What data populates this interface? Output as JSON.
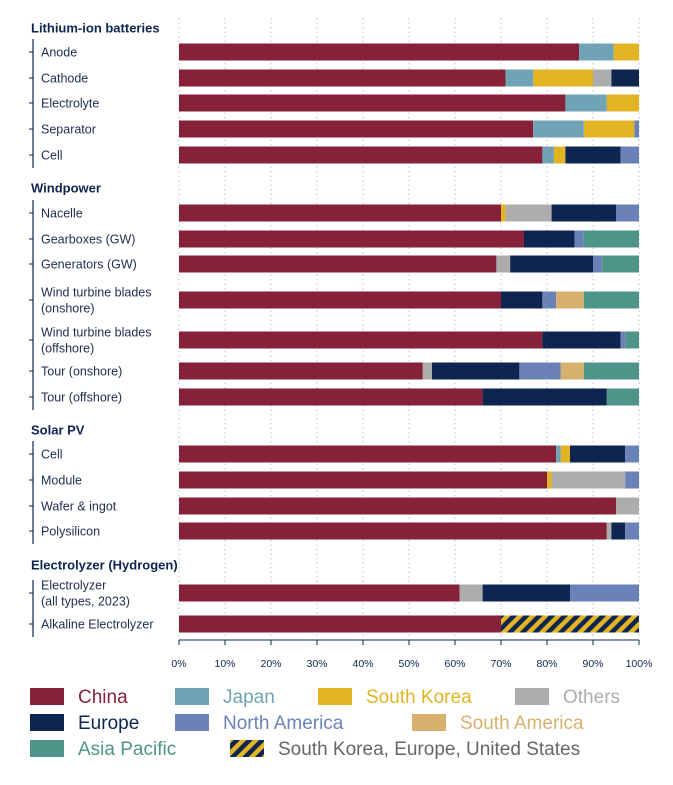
{
  "chart_data": {
    "type": "bar",
    "orientation": "horizontal",
    "stacked": true,
    "x_ticks": [
      "0%",
      "10%",
      "20%",
      "30%",
      "40%",
      "50%",
      "60%",
      "70%",
      "80%",
      "90%",
      "100%"
    ],
    "xlim": [
      0,
      100
    ],
    "grid": "vertical dotted",
    "legend_position": "bottom",
    "legend": [
      {
        "key": "china",
        "label": "China",
        "color": "#86213a",
        "text_color": "#86213a"
      },
      {
        "key": "japan",
        "label": "Japan",
        "color": "#6fa3b5",
        "text_color": "#6fa3b5"
      },
      {
        "key": "south_korea",
        "label": "South Korea",
        "color": "#e2b423",
        "text_color": "#e2b423"
      },
      {
        "key": "others",
        "label": "Others",
        "color": "#adadad",
        "text_color": "#adadad"
      },
      {
        "key": "europe",
        "label": "Europe",
        "color": "#0d2550",
        "text_color": "#0d2550"
      },
      {
        "key": "north_america",
        "label": "North America",
        "color": "#6a82b8",
        "text_color": "#6a82b8"
      },
      {
        "key": "south_america",
        "label": "South America",
        "color": "#d7b06d",
        "text_color": "#d7b06d"
      },
      {
        "key": "asia_pacific",
        "label": "Asia Pacific",
        "color": "#4f9488",
        "text_color": "#4f9488"
      },
      {
        "key": "skeu_us",
        "label": "South Korea, Europe, United States",
        "color": "hatched",
        "text_color": "#666666"
      }
    ],
    "groups": [
      {
        "title": "Lithium-ion batteries",
        "rows": [
          {
            "label": [
              "Anode"
            ],
            "segments": [
              {
                "s": "china",
                "v": 87
              },
              {
                "s": "japan",
                "v": 7.5
              },
              {
                "s": "south_korea",
                "v": 5.5
              }
            ]
          },
          {
            "label": [
              "Cathode"
            ],
            "segments": [
              {
                "s": "china",
                "v": 71
              },
              {
                "s": "japan",
                "v": 6
              },
              {
                "s": "south_korea",
                "v": 13
              },
              {
                "s": "others",
                "v": 4
              },
              {
                "s": "europe",
                "v": 6
              }
            ]
          },
          {
            "label": [
              "Electrolyte"
            ],
            "segments": [
              {
                "s": "china",
                "v": 84
              },
              {
                "s": "japan",
                "v": 9
              },
              {
                "s": "south_korea",
                "v": 7
              }
            ]
          },
          {
            "label": [
              "Separator"
            ],
            "segments": [
              {
                "s": "china",
                "v": 77
              },
              {
                "s": "japan",
                "v": 11
              },
              {
                "s": "south_korea",
                "v": 11
              },
              {
                "s": "north_america",
                "v": 1
              }
            ]
          },
          {
            "label": [
              "Cell"
            ],
            "segments": [
              {
                "s": "china",
                "v": 79
              },
              {
                "s": "japan",
                "v": 2.5
              },
              {
                "s": "south_korea",
                "v": 2.5
              },
              {
                "s": "europe",
                "v": 12
              },
              {
                "s": "north_america",
                "v": 4
              }
            ]
          }
        ]
      },
      {
        "title": "Windpower",
        "rows": [
          {
            "label": [
              "Nacelle"
            ],
            "segments": [
              {
                "s": "china",
                "v": 70
              },
              {
                "s": "south_korea",
                "v": 1
              },
              {
                "s": "others",
                "v": 10
              },
              {
                "s": "europe",
                "v": 14
              },
              {
                "s": "north_america",
                "v": 5
              }
            ]
          },
          {
            "label": [
              "Gearboxes (GW)"
            ],
            "segments": [
              {
                "s": "china",
                "v": 75
              },
              {
                "s": "europe",
                "v": 11
              },
              {
                "s": "north_america",
                "v": 2
              },
              {
                "s": "asia_pacific",
                "v": 12
              }
            ]
          },
          {
            "label": [
              "Generators (GW)"
            ],
            "segments": [
              {
                "s": "china",
                "v": 69
              },
              {
                "s": "others",
                "v": 3
              },
              {
                "s": "europe",
                "v": 18
              },
              {
                "s": "north_america",
                "v": 2
              },
              {
                "s": "asia_pacific",
                "v": 8
              }
            ]
          },
          {
            "label": [
              "Wind turbine blades",
              "(onshore)"
            ],
            "segments": [
              {
                "s": "china",
                "v": 70
              },
              {
                "s": "europe",
                "v": 9
              },
              {
                "s": "north_america",
                "v": 3
              },
              {
                "s": "south_america",
                "v": 6
              },
              {
                "s": "asia_pacific",
                "v": 12
              }
            ]
          },
          {
            "label": [
              "Wind turbine blades",
              "(offshore)"
            ],
            "segments": [
              {
                "s": "china",
                "v": 79
              },
              {
                "s": "europe",
                "v": 17
              },
              {
                "s": "north_america",
                "v": 1
              },
              {
                "s": "asia_pacific",
                "v": 3
              }
            ]
          },
          {
            "label": [
              "Tour (onshore)"
            ],
            "segments": [
              {
                "s": "china",
                "v": 53
              },
              {
                "s": "others",
                "v": 2
              },
              {
                "s": "europe",
                "v": 19
              },
              {
                "s": "north_america",
                "v": 9
              },
              {
                "s": "south_america",
                "v": 5
              },
              {
                "s": "asia_pacific",
                "v": 12
              }
            ]
          },
          {
            "label": [
              "Tour (offshore)"
            ],
            "segments": [
              {
                "s": "china",
                "v": 66
              },
              {
                "s": "europe",
                "v": 27
              },
              {
                "s": "asia_pacific",
                "v": 7
              }
            ]
          }
        ]
      },
      {
        "title": "Solar PV",
        "rows": [
          {
            "label": [
              "Cell"
            ],
            "segments": [
              {
                "s": "china",
                "v": 82
              },
              {
                "s": "japan",
                "v": 1
              },
              {
                "s": "south_korea",
                "v": 2
              },
              {
                "s": "europe",
                "v": 12
              },
              {
                "s": "north_america",
                "v": 3
              }
            ]
          },
          {
            "label": [
              "Module"
            ],
            "segments": [
              {
                "s": "china",
                "v": 80
              },
              {
                "s": "south_korea",
                "v": 1
              },
              {
                "s": "others",
                "v": 16
              },
              {
                "s": "north_america",
                "v": 3
              }
            ]
          },
          {
            "label": [
              "Wafer & ingot"
            ],
            "segments": [
              {
                "s": "china",
                "v": 95
              },
              {
                "s": "others",
                "v": 5
              }
            ]
          },
          {
            "label": [
              "Polysilicon"
            ],
            "segments": [
              {
                "s": "china",
                "v": 93
              },
              {
                "s": "others",
                "v": 1
              },
              {
                "s": "europe",
                "v": 3
              },
              {
                "s": "north_america",
                "v": 3
              }
            ]
          }
        ]
      },
      {
        "title": "Electrolyzer (Hydrogen)",
        "rows": [
          {
            "label": [
              "Electrolyzer",
              "(all types, 2023)"
            ],
            "segments": [
              {
                "s": "china",
                "v": 61
              },
              {
                "s": "others",
                "v": 5
              },
              {
                "s": "europe",
                "v": 19
              },
              {
                "s": "north_america",
                "v": 15
              }
            ]
          },
          {
            "label": [
              "Alkaline Electrolyzer"
            ],
            "segments": [
              {
                "s": "china",
                "v": 70
              },
              {
                "s": "skeu_us",
                "v": 30
              }
            ]
          }
        ]
      }
    ]
  }
}
